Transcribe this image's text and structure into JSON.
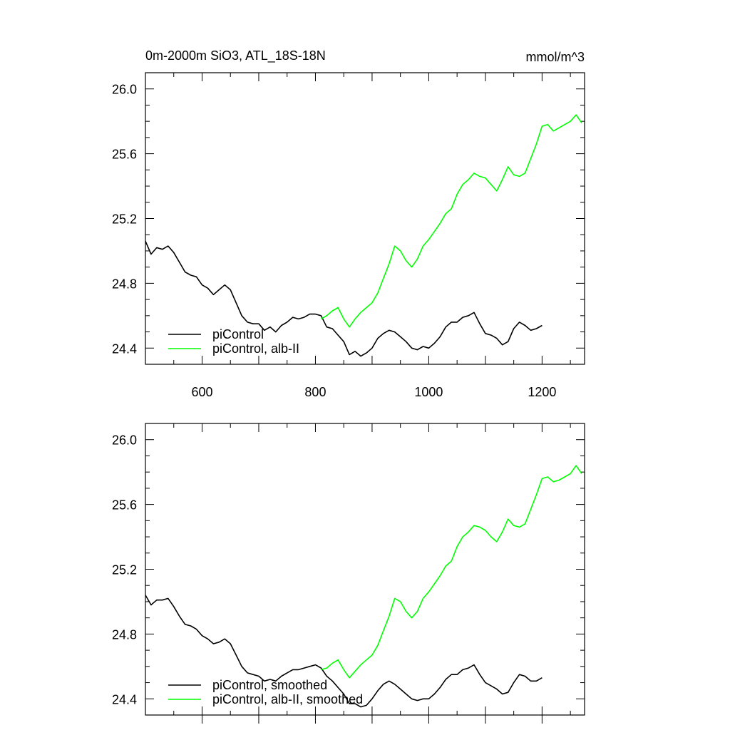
{
  "header": {
    "title": "0m-2000m SiO3, ATL_18S-18N",
    "units": "mmol/m^3"
  },
  "chart_data": [
    {
      "type": "line",
      "xlim": [
        500,
        1275
      ],
      "ylim": [
        24.3,
        26.1
      ],
      "xticks": [
        600,
        800,
        1000,
        1200
      ],
      "xtick_labels": [
        "600",
        "800",
        "1000",
        "1200"
      ],
      "yticks": [
        24.4,
        24.8,
        25.2,
        25.6,
        26.0
      ],
      "ytick_labels": [
        "24.4",
        "24.8",
        "25.2",
        "25.6",
        "26.0"
      ],
      "legend_position": "bottom-left",
      "grid": false,
      "series": [
        {
          "name": "piControl",
          "color": "#000000",
          "x": [
            500,
            510,
            520,
            530,
            540,
            550,
            560,
            570,
            580,
            590,
            600,
            610,
            620,
            630,
            640,
            650,
            660,
            670,
            680,
            690,
            700,
            710,
            720,
            730,
            740,
            750,
            760,
            770,
            780,
            790,
            800,
            810,
            820,
            830,
            840,
            850,
            860,
            870,
            880,
            890,
            900,
            910,
            920,
            930,
            940,
            950,
            960,
            970,
            980,
            990,
            1000,
            1010,
            1020,
            1030,
            1040,
            1050,
            1060,
            1070,
            1080,
            1090,
            1100,
            1110,
            1120,
            1130,
            1140,
            1150,
            1160,
            1170,
            1180,
            1190,
            1200
          ],
          "y": [
            25.06,
            24.98,
            25.02,
            25.01,
            25.03,
            24.99,
            24.93,
            24.87,
            24.85,
            24.84,
            24.79,
            24.77,
            24.73,
            24.76,
            24.79,
            24.76,
            24.68,
            24.6,
            24.56,
            24.55,
            24.55,
            24.51,
            24.53,
            24.5,
            24.54,
            24.56,
            24.59,
            24.58,
            24.59,
            24.61,
            24.61,
            24.6,
            24.53,
            24.52,
            24.48,
            24.44,
            24.36,
            24.38,
            24.35,
            24.37,
            24.4,
            24.46,
            24.49,
            24.51,
            24.5,
            24.47,
            24.44,
            24.4,
            24.39,
            24.41,
            24.4,
            24.43,
            24.47,
            24.53,
            24.56,
            24.56,
            24.59,
            24.6,
            24.62,
            24.55,
            24.49,
            24.48,
            24.46,
            24.42,
            24.44,
            24.52,
            24.56,
            24.54,
            24.51,
            24.52,
            24.54
          ]
        },
        {
          "name": "piControl, alb-II",
          "color": "#00ff00",
          "x": [
            810,
            820,
            830,
            840,
            850,
            860,
            870,
            880,
            890,
            900,
            910,
            920,
            930,
            940,
            950,
            960,
            970,
            980,
            990,
            1000,
            1010,
            1020,
            1030,
            1040,
            1050,
            1060,
            1070,
            1080,
            1090,
            1100,
            1110,
            1120,
            1130,
            1140,
            1150,
            1160,
            1170,
            1180,
            1190,
            1200,
            1210,
            1220,
            1230,
            1240,
            1250,
            1260,
            1270
          ],
          "y": [
            24.58,
            24.6,
            24.63,
            24.65,
            24.58,
            24.53,
            24.58,
            24.62,
            24.65,
            24.68,
            24.74,
            24.83,
            24.92,
            25.03,
            25.0,
            24.94,
            24.9,
            24.95,
            25.03,
            25.07,
            25.12,
            25.17,
            25.23,
            25.26,
            25.35,
            25.41,
            25.44,
            25.48,
            25.46,
            25.45,
            25.41,
            25.37,
            25.44,
            25.52,
            25.47,
            25.46,
            25.48,
            25.57,
            25.66,
            25.77,
            25.78,
            25.74,
            25.76,
            25.78,
            25.8,
            25.84,
            25.79
          ]
        }
      ]
    },
    {
      "type": "line",
      "xlim": [
        500,
        1275
      ],
      "ylim": [
        24.3,
        26.1
      ],
      "xticks": [
        600,
        800,
        1000,
        1200
      ],
      "yticks": [
        24.4,
        24.8,
        25.2,
        25.6,
        26.0
      ],
      "ytick_labels": [
        "24.4",
        "24.8",
        "25.2",
        "25.6",
        "26.0"
      ],
      "legend_position": "bottom-left",
      "grid": false,
      "series": [
        {
          "name": "piControl, smoothed",
          "color": "#000000",
          "x": [
            500,
            510,
            520,
            530,
            540,
            550,
            560,
            570,
            580,
            590,
            600,
            610,
            620,
            630,
            640,
            650,
            660,
            670,
            680,
            690,
            700,
            710,
            720,
            730,
            740,
            750,
            760,
            770,
            780,
            790,
            800,
            810,
            820,
            830,
            840,
            850,
            860,
            870,
            880,
            890,
            900,
            910,
            920,
            930,
            940,
            950,
            960,
            970,
            980,
            990,
            1000,
            1010,
            1020,
            1030,
            1040,
            1050,
            1060,
            1070,
            1080,
            1090,
            1100,
            1110,
            1120,
            1130,
            1140,
            1150,
            1160,
            1170,
            1180,
            1190,
            1200
          ],
          "y": [
            25.04,
            24.98,
            25.01,
            25.01,
            25.02,
            24.97,
            24.91,
            24.86,
            24.85,
            24.83,
            24.79,
            24.77,
            24.74,
            24.75,
            24.77,
            24.74,
            24.67,
            24.6,
            24.56,
            24.55,
            24.54,
            24.51,
            24.52,
            24.51,
            24.54,
            24.56,
            24.58,
            24.58,
            24.59,
            24.6,
            24.61,
            24.59,
            24.54,
            24.51,
            24.47,
            24.43,
            24.37,
            24.37,
            24.35,
            24.36,
            24.4,
            24.45,
            24.49,
            24.51,
            24.49,
            24.46,
            24.43,
            24.4,
            24.39,
            24.4,
            24.4,
            24.43,
            24.47,
            24.52,
            24.55,
            24.55,
            24.58,
            24.59,
            24.61,
            24.55,
            24.5,
            24.48,
            24.46,
            24.43,
            24.44,
            24.5,
            24.55,
            24.54,
            24.51,
            24.51,
            24.53
          ]
        },
        {
          "name": "piControl, alb-II, smoothed",
          "color": "#00ff00",
          "x": [
            810,
            820,
            830,
            840,
            850,
            860,
            870,
            880,
            890,
            900,
            910,
            920,
            930,
            940,
            950,
            960,
            970,
            980,
            990,
            1000,
            1010,
            1020,
            1030,
            1040,
            1050,
            1060,
            1070,
            1080,
            1090,
            1100,
            1110,
            1120,
            1130,
            1140,
            1150,
            1160,
            1170,
            1180,
            1190,
            1200,
            1210,
            1220,
            1230,
            1240,
            1250,
            1260,
            1270
          ],
          "y": [
            24.58,
            24.59,
            24.62,
            24.64,
            24.58,
            24.53,
            24.57,
            24.61,
            24.64,
            24.67,
            24.73,
            24.82,
            24.91,
            25.02,
            25.0,
            24.94,
            24.9,
            24.94,
            25.02,
            25.06,
            25.11,
            25.16,
            25.22,
            25.25,
            25.34,
            25.4,
            25.43,
            25.47,
            25.46,
            25.44,
            25.4,
            25.37,
            25.43,
            25.51,
            25.47,
            25.46,
            25.48,
            25.57,
            25.66,
            25.76,
            25.77,
            25.74,
            25.75,
            25.77,
            25.79,
            25.84,
            25.79
          ]
        }
      ]
    }
  ]
}
